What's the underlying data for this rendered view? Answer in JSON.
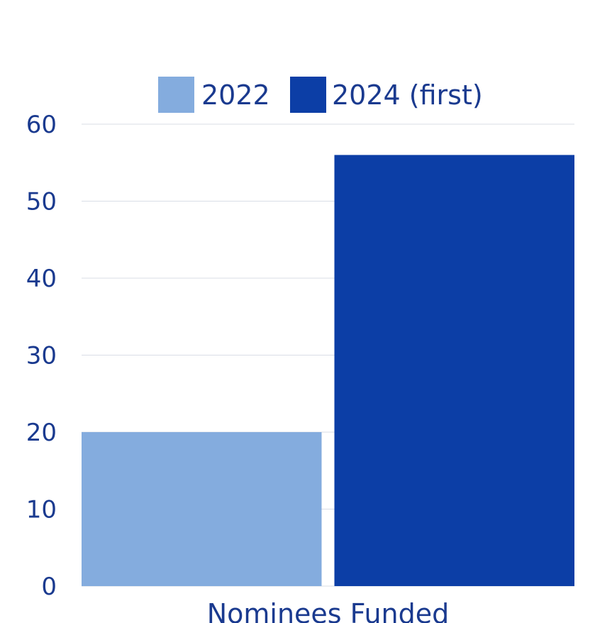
{
  "chart_data": {
    "type": "bar",
    "categories": [
      "Nominees Funded"
    ],
    "series": [
      {
        "name": "2022",
        "values": [
          20
        ],
        "color": "#84acde"
      },
      {
        "name": "2024 (first)",
        "values": [
          56
        ],
        "color": "#0c3ea6"
      }
    ],
    "ylim": [
      0,
      60
    ],
    "yticks": [
      "0",
      "10",
      "20",
      "30",
      "40",
      "50",
      "60"
    ],
    "grid": true,
    "legend_position": "top"
  }
}
